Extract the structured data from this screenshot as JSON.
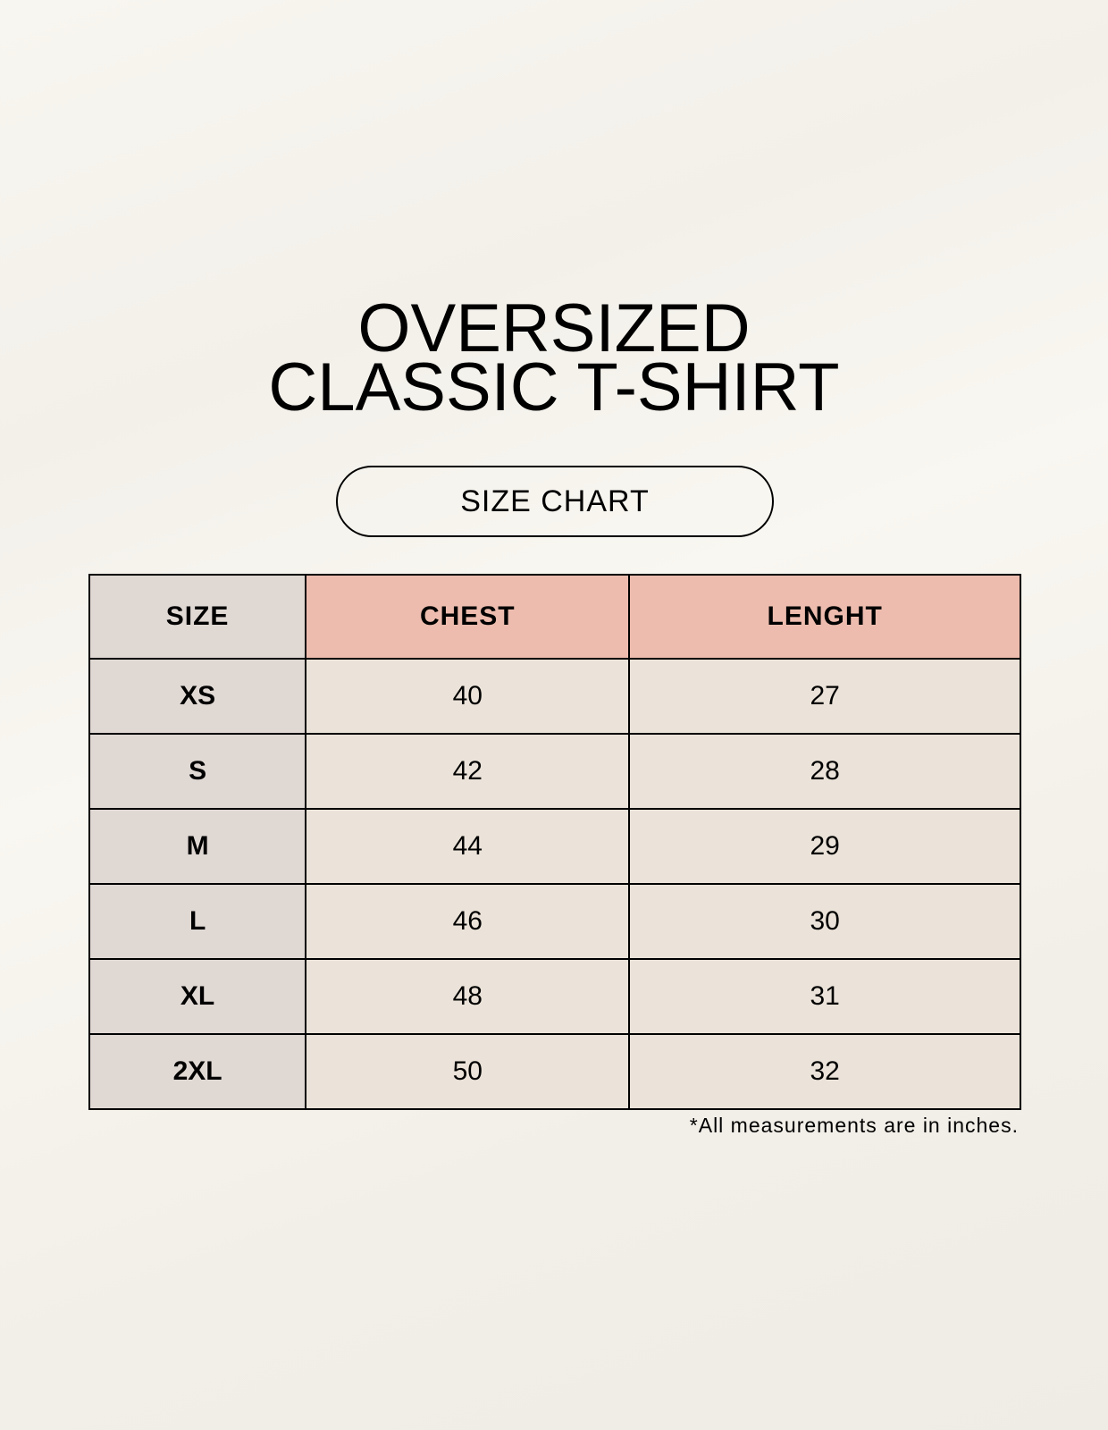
{
  "title_line1": "OVERSIZED",
  "title_line2": "CLASSIC T-SHIRT",
  "subtitle": "SIZE CHART",
  "table": {
    "headers": [
      "SIZE",
      "CHEST",
      "LENGHT"
    ],
    "rows": [
      [
        "XS",
        "40",
        "27"
      ],
      [
        "S",
        "42",
        "28"
      ],
      [
        "M",
        "44",
        "29"
      ],
      [
        "L",
        "46",
        "30"
      ],
      [
        "XL",
        "48",
        "31"
      ],
      [
        "2XL",
        "50",
        "32"
      ]
    ]
  },
  "colors": {
    "size_column": "#e0d8d3",
    "header_accent": "#edbcae",
    "cell": "#ebe3d9"
  },
  "footnote": "*All measurements are in inches."
}
